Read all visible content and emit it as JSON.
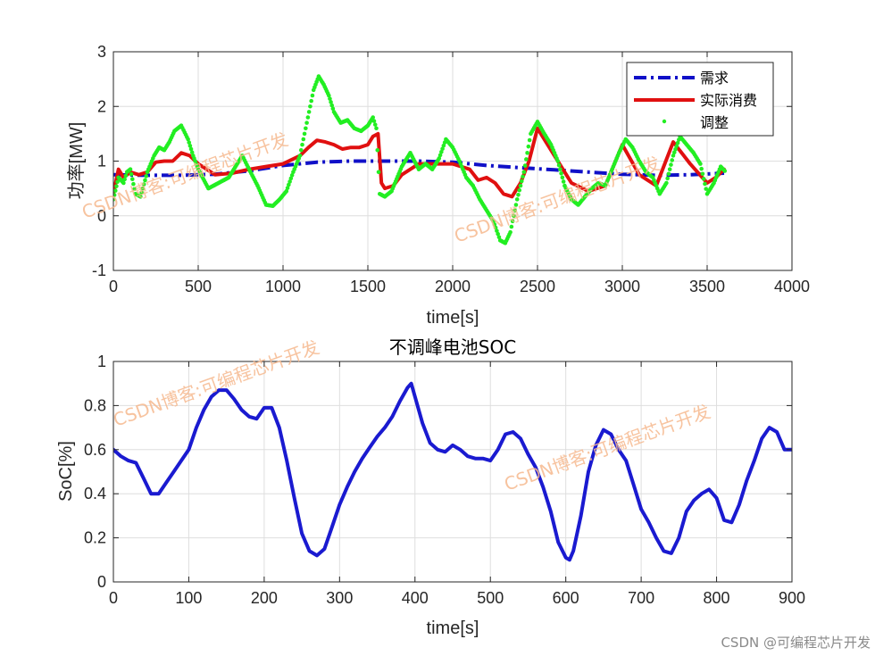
{
  "chart_data": [
    {
      "type": "line",
      "title": "",
      "xlabel": "time[s]",
      "ylabel": "功率[MW]",
      "xlim": [
        0,
        4000
      ],
      "ylim": [
        -1,
        3
      ],
      "xticks": [
        0,
        500,
        1000,
        1500,
        2000,
        2500,
        3000,
        3500,
        4000
      ],
      "yticks": [
        -1,
        0,
        1,
        2,
        3
      ],
      "xtick_labels": [
        "0",
        "500",
        "1000",
        "1500",
        "2000",
        "2500",
        "3000",
        "3500",
        "4000"
      ],
      "ytick_labels": [
        "-1",
        "0",
        "1",
        "2",
        "3"
      ],
      "grid": true,
      "legend_position": "top-right",
      "series": [
        {
          "name": "需求",
          "style": "dashdot",
          "color": "#1010c8",
          "x": [
            0,
            200,
            400,
            600,
            800,
            1000,
            1200,
            1400,
            1500,
            1600,
            1800,
            2000,
            2200,
            2400,
            2600,
            2800,
            3000,
            3200,
            3400,
            3600
          ],
          "y": [
            0.75,
            0.74,
            0.74,
            0.76,
            0.82,
            0.92,
            0.98,
            1.0,
            1.0,
            1.0,
            1.0,
            0.98,
            0.92,
            0.88,
            0.84,
            0.8,
            0.76,
            0.74,
            0.75,
            0.78
          ]
        },
        {
          "name": "实际消费",
          "style": "solid",
          "color": "#e01010",
          "x": [
            0,
            30,
            60,
            100,
            150,
            200,
            250,
            300,
            350,
            400,
            450,
            500,
            600,
            700,
            800,
            900,
            1000,
            1100,
            1150,
            1200,
            1250,
            1300,
            1350,
            1400,
            1450,
            1500,
            1530,
            1560,
            1580,
            1600,
            1650,
            1700,
            1800,
            1900,
            2000,
            2100,
            2150,
            2200,
            2250,
            2300,
            2350,
            2400,
            2450,
            2500,
            2600,
            2700,
            2800,
            2900,
            3000,
            3100,
            3200,
            3300,
            3400,
            3500,
            3550,
            3600
          ],
          "y": [
            0.4,
            0.85,
            0.7,
            0.8,
            0.75,
            0.8,
            0.98,
            1.0,
            1.0,
            1.15,
            1.1,
            0.95,
            0.75,
            0.78,
            0.85,
            0.9,
            0.95,
            1.1,
            1.25,
            1.38,
            1.35,
            1.3,
            1.22,
            1.25,
            1.25,
            1.3,
            1.45,
            1.5,
            0.6,
            0.5,
            0.55,
            0.75,
            0.95,
            0.95,
            0.95,
            0.85,
            0.65,
            0.7,
            0.6,
            0.4,
            0.35,
            0.6,
            1.0,
            1.6,
            1.1,
            0.6,
            0.45,
            0.55,
            1.3,
            0.75,
            0.55,
            1.35,
            0.95,
            0.6,
            0.7,
            0.85
          ]
        },
        {
          "name": "调整",
          "style": "dots",
          "color": "#22ee22",
          "x": [
            0,
            30,
            60,
            80,
            100,
            130,
            160,
            200,
            240,
            270,
            300,
            330,
            360,
            400,
            440,
            470,
            500,
            560,
            620,
            680,
            760,
            800,
            850,
            900,
            940,
            980,
            1020,
            1060,
            1100,
            1140,
            1180,
            1210,
            1240,
            1270,
            1300,
            1340,
            1380,
            1420,
            1460,
            1500,
            1530,
            1550,
            1570,
            1600,
            1640,
            1700,
            1750,
            1800,
            1840,
            1880,
            1920,
            1960,
            2000,
            2040,
            2080,
            2120,
            2160,
            2200,
            2240,
            2280,
            2310,
            2340,
            2380,
            2420,
            2460,
            2500,
            2540,
            2580,
            2620,
            2660,
            2700,
            2740,
            2780,
            2820,
            2860,
            2900,
            2940,
            2980,
            3020,
            3060,
            3100,
            3140,
            3180,
            3220,
            3260,
            3300,
            3340,
            3380,
            3420,
            3460,
            3500,
            3540,
            3580,
            3610
          ],
          "y": [
            0.3,
            0.7,
            0.6,
            0.8,
            0.85,
            0.4,
            0.35,
            0.8,
            1.1,
            1.25,
            1.2,
            1.35,
            1.55,
            1.65,
            1.4,
            1.1,
            0.85,
            0.5,
            0.6,
            0.7,
            1.1,
            0.85,
            0.55,
            0.2,
            0.18,
            0.3,
            0.45,
            0.8,
            1.1,
            1.7,
            2.3,
            2.55,
            2.4,
            2.2,
            1.9,
            1.7,
            1.75,
            1.6,
            1.55,
            1.65,
            1.8,
            1.6,
            0.4,
            0.35,
            0.45,
            0.9,
            1.15,
            0.85,
            0.95,
            0.85,
            1.05,
            1.4,
            1.25,
            1.0,
            0.7,
            0.55,
            0.3,
            0.1,
            -0.1,
            -0.45,
            -0.5,
            -0.3,
            0.3,
            0.8,
            1.5,
            1.72,
            1.5,
            1.3,
            1.0,
            0.55,
            0.3,
            0.2,
            0.35,
            0.5,
            0.6,
            0.55,
            0.85,
            1.15,
            1.4,
            1.25,
            1.0,
            0.8,
            0.7,
            0.4,
            0.6,
            1.1,
            1.45,
            1.3,
            1.15,
            0.95,
            0.4,
            0.6,
            0.9,
            0.8
          ]
        }
      ]
    },
    {
      "type": "line",
      "title": "不调峰电池SOC",
      "xlabel": "time[s]",
      "ylabel": "SoC[%]",
      "xlim": [
        0,
        900
      ],
      "ylim": [
        0,
        1
      ],
      "xticks": [
        0,
        100,
        200,
        300,
        400,
        500,
        600,
        700,
        800,
        900
      ],
      "yticks": [
        0,
        0.2,
        0.4,
        0.6,
        0.8,
        1
      ],
      "xtick_labels": [
        "0",
        "100",
        "200",
        "300",
        "400",
        "500",
        "600",
        "700",
        "800",
        "900"
      ],
      "ytick_labels": [
        "0",
        "0.2",
        "0.4",
        "0.6",
        "0.8",
        "1"
      ],
      "grid": true,
      "series": [
        {
          "name": "SOC",
          "style": "solid",
          "color": "#1a1ad0",
          "x": [
            0,
            10,
            20,
            30,
            40,
            50,
            60,
            70,
            80,
            90,
            100,
            110,
            120,
            130,
            140,
            150,
            160,
            170,
            180,
            190,
            200,
            210,
            220,
            230,
            240,
            250,
            260,
            270,
            280,
            290,
            300,
            310,
            320,
            330,
            340,
            350,
            360,
            370,
            380,
            390,
            395,
            400,
            410,
            420,
            430,
            440,
            450,
            460,
            470,
            480,
            490,
            500,
            510,
            520,
            530,
            540,
            550,
            560,
            570,
            580,
            590,
            600,
            605,
            610,
            620,
            630,
            640,
            650,
            660,
            670,
            680,
            690,
            700,
            710,
            720,
            730,
            740,
            750,
            760,
            770,
            780,
            790,
            800,
            810,
            820,
            830,
            840,
            850,
            860,
            870,
            880,
            890,
            900
          ],
          "y": [
            0.6,
            0.57,
            0.55,
            0.54,
            0.47,
            0.4,
            0.4,
            0.45,
            0.5,
            0.55,
            0.6,
            0.7,
            0.78,
            0.84,
            0.87,
            0.87,
            0.83,
            0.78,
            0.75,
            0.74,
            0.79,
            0.79,
            0.7,
            0.55,
            0.38,
            0.22,
            0.14,
            0.12,
            0.15,
            0.25,
            0.35,
            0.43,
            0.5,
            0.56,
            0.61,
            0.66,
            0.7,
            0.75,
            0.82,
            0.88,
            0.9,
            0.84,
            0.72,
            0.63,
            0.6,
            0.59,
            0.62,
            0.6,
            0.57,
            0.56,
            0.56,
            0.55,
            0.6,
            0.67,
            0.68,
            0.65,
            0.58,
            0.52,
            0.43,
            0.32,
            0.18,
            0.11,
            0.1,
            0.14,
            0.3,
            0.5,
            0.62,
            0.69,
            0.67,
            0.6,
            0.55,
            0.44,
            0.33,
            0.27,
            0.2,
            0.14,
            0.13,
            0.2,
            0.32,
            0.37,
            0.4,
            0.42,
            0.38,
            0.28,
            0.27,
            0.35,
            0.46,
            0.55,
            0.65,
            0.7,
            0.68,
            0.6,
            0.6
          ]
        }
      ]
    }
  ],
  "watermarks": [
    "CSDN博客:可编程芯片开发",
    "CSDN博客:可编程芯片开发",
    "CSDN博客:可编程芯片开发",
    "CSDN博客:可编程芯片开发"
  ],
  "footer_text": "CSDN @可编程芯片开发"
}
